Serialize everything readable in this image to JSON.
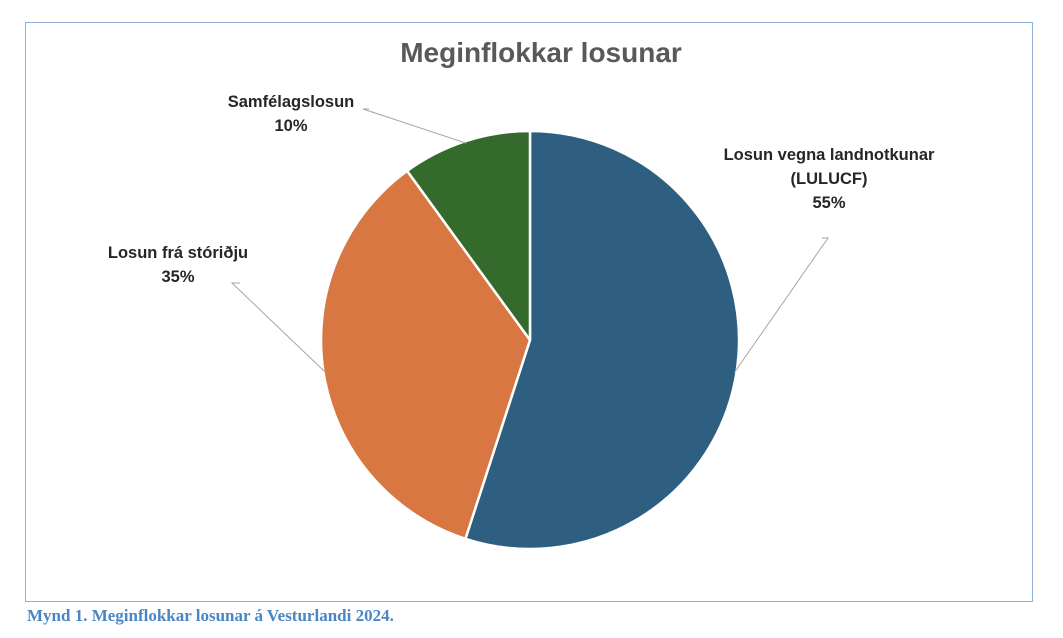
{
  "chart_data": {
    "type": "pie",
    "title": "Meginflokkar losunar",
    "slices": [
      {
        "label_lines": [
          "Losun vegna landnotkunar",
          "(LULUCF)"
        ],
        "percent_label": "55%",
        "value": 55,
        "color": "#2e5f80"
      },
      {
        "label_lines": [
          "Losun frá stóriðju"
        ],
        "percent_label": "35%",
        "value": 35,
        "color": "#d97742"
      },
      {
        "label_lines": [
          "Samfélagslosun"
        ],
        "percent_label": "10%",
        "value": 10,
        "color": "#356a2d"
      }
    ]
  },
  "caption": "Mynd 1. Meginflokkar losunar á Vesturlandi 2024."
}
